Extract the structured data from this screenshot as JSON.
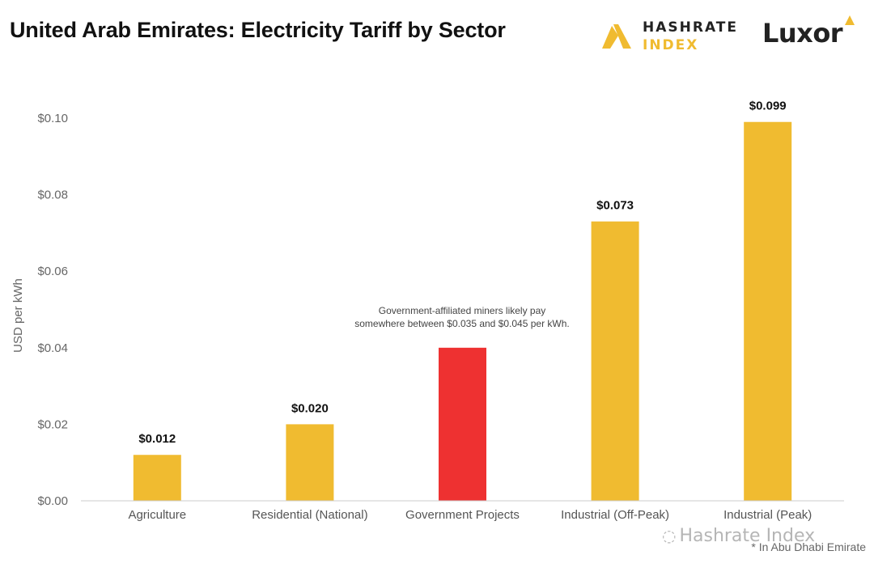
{
  "header": {
    "title": "United Arab Emirates: Electricity Tariff by Sector"
  },
  "logos": {
    "hashrate_line1": "HASHRATE",
    "hashrate_line2": "INDEX",
    "luxor": "Luxor"
  },
  "chart_data": {
    "type": "bar",
    "title": "United Arab Emirates: Electricity Tariff by Sector",
    "xlabel": "",
    "ylabel": "USD per kWh",
    "ylim": [
      0,
      0.11
    ],
    "yticks": [
      0.0,
      0.02,
      0.04,
      0.06,
      0.08,
      0.1
    ],
    "ytick_labels": [
      "$0.00",
      "$0.02",
      "$0.04",
      "$0.06",
      "$0.08",
      "$0.10"
    ],
    "grid": false,
    "categories": [
      "Agriculture",
      "Residential (National)",
      "Government Projects",
      "Industrial (Off-Peak)",
      "Industrial (Peak)"
    ],
    "values": [
      0.012,
      0.02,
      0.04,
      0.073,
      0.099
    ],
    "value_labels": [
      "$0.012",
      "$0.020",
      "",
      "$0.073",
      "$0.099"
    ],
    "colors": [
      "#f0bb30",
      "#f0bb30",
      "#ee3131",
      "#f0bb30",
      "#f0bb30"
    ],
    "annotation": {
      "category": "Government Projects",
      "lines": [
        "Government-affiliated miners likely pay",
        "somewhere between $0.035 and $0.045 per kWh."
      ]
    }
  },
  "footnote": "* In Abu Dhabi Emirate",
  "watermark": "Hashrate Index",
  "colors": {
    "bar_default": "#f0bb30",
    "bar_highlight": "#ee3131",
    "axis_text": "#666666",
    "label_text": "#111111"
  }
}
